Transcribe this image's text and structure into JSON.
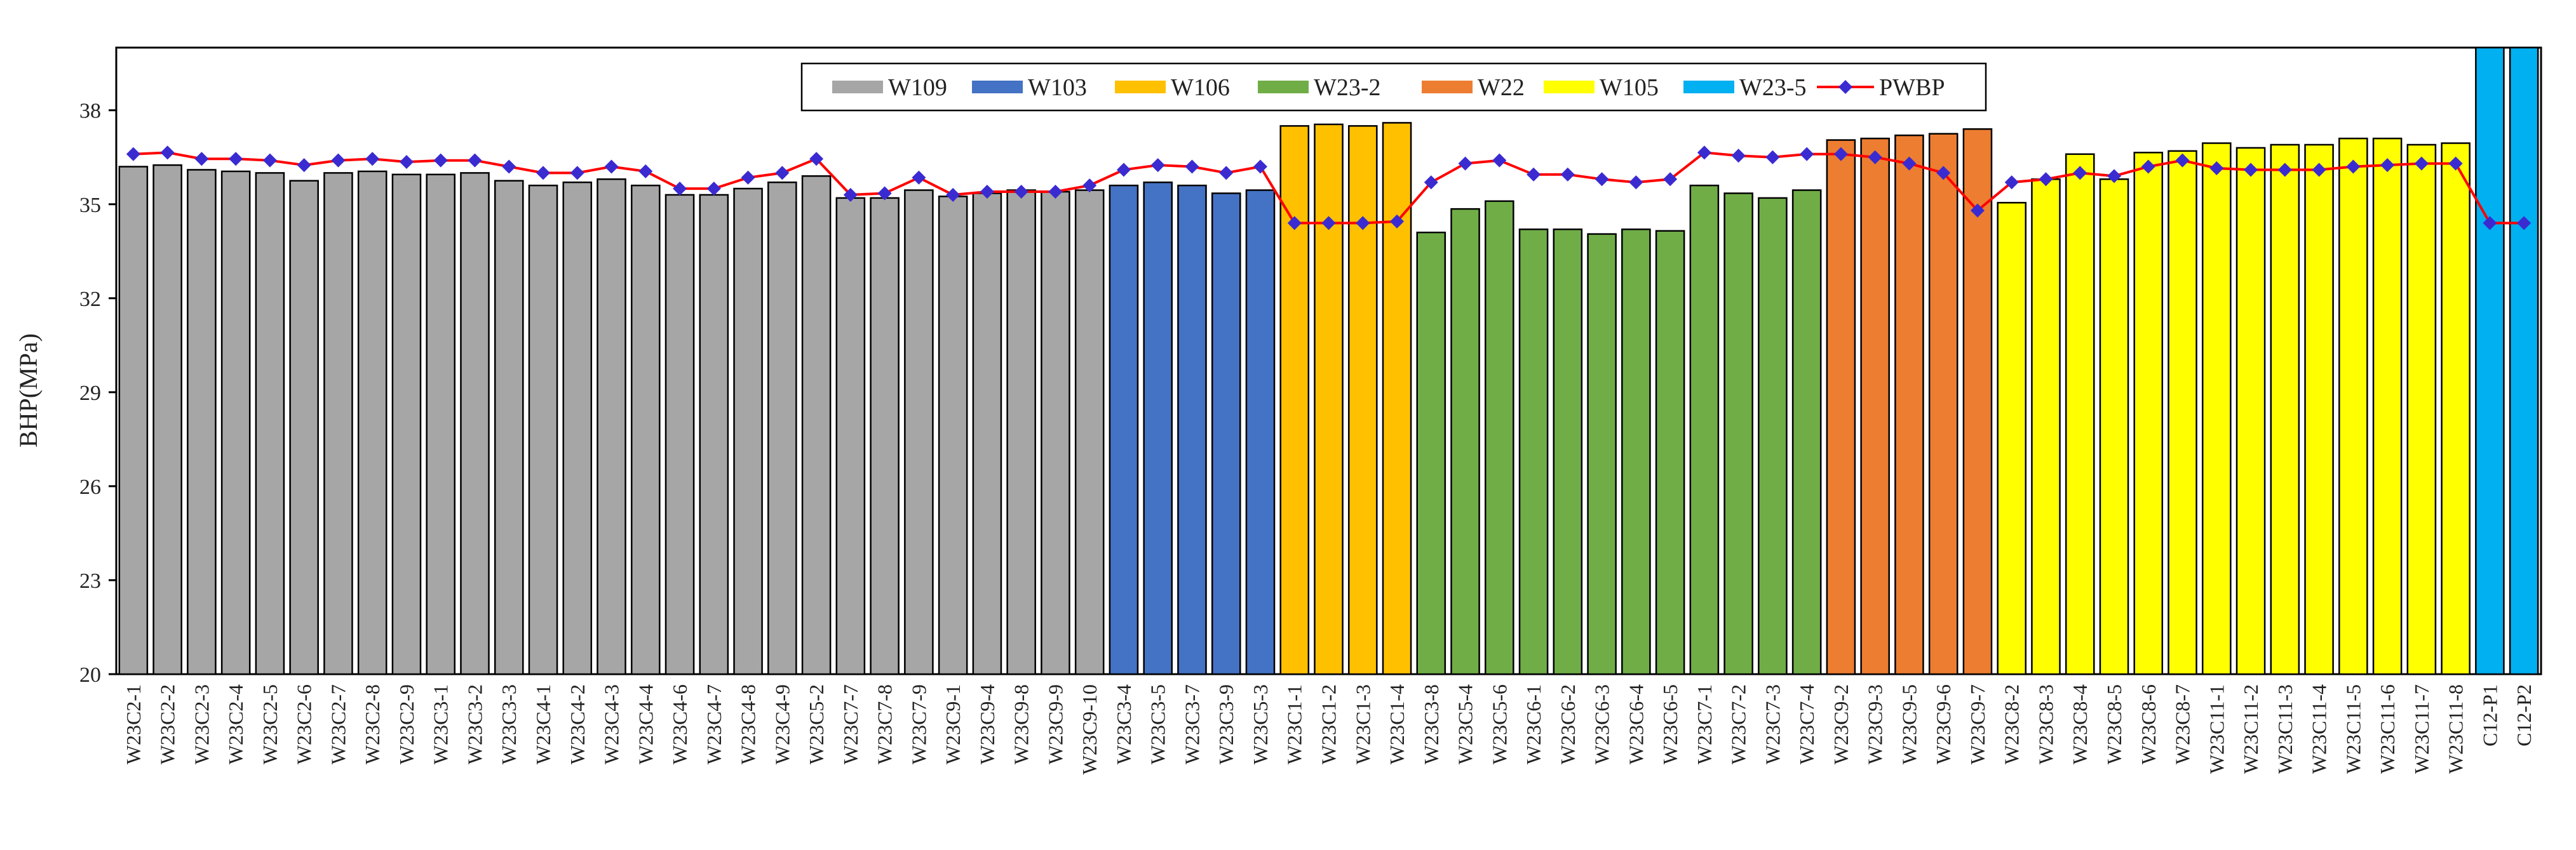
{
  "chart_data": {
    "type": "bar",
    "title": "",
    "xlabel": "",
    "ylabel": "BHP(MPa)",
    "ylim": [
      20,
      40
    ],
    "yticks": [
      20,
      23,
      26,
      29,
      32,
      35,
      38
    ],
    "grid": false,
    "legend_position": "top-center",
    "categories": [
      "W23C2-1",
      "W23C2-2",
      "W23C2-3",
      "W23C2-4",
      "W23C2-5",
      "W23C2-6",
      "W23C2-7",
      "W23C2-8",
      "W23C2-9",
      "W23C3-1",
      "W23C3-2",
      "W23C3-3",
      "W23C4-1",
      "W23C4-2",
      "W23C4-3",
      "W23C4-4",
      "W23C4-6",
      "W23C4-7",
      "W23C4-8",
      "W23C4-9",
      "W23C5-2",
      "W23C7-7",
      "W23C7-8",
      "W23C7-9",
      "W23C9-1",
      "W23C9-4",
      "W23C9-8",
      "W23C9-9",
      "W23C9-10",
      "W23C3-4",
      "W23C3-5",
      "W23C3-7",
      "W23C3-9",
      "W23C5-3",
      "W23C1-1",
      "W23C1-2",
      "W23C1-3",
      "W23C1-4",
      "W23C3-8",
      "W23C5-4",
      "W23C5-6",
      "W23C6-1",
      "W23C6-2",
      "W23C6-3",
      "W23C6-4",
      "W23C6-5",
      "W23C7-1",
      "W23C7-2",
      "W23C7-3",
      "W23C7-4",
      "W23C9-2",
      "W23C9-3",
      "W23C9-5",
      "W23C9-6",
      "W23C9-7",
      "W23C8-2",
      "W23C8-3",
      "W23C8-4",
      "W23C8-5",
      "W23C8-6",
      "W23C8-7",
      "W23C11-1",
      "W23C11-2",
      "W23C11-3",
      "W23C11-4",
      "W23C11-5",
      "W23C11-6",
      "W23C11-7",
      "W23C11-8",
      "C12-P1",
      "C12-P2"
    ],
    "groups": [
      {
        "name": "W109",
        "color": "#a6a6a6",
        "count": 29
      },
      {
        "name": "W103",
        "color": "#4472c4",
        "count": 5
      },
      {
        "name": "W106",
        "color": "#ffc000",
        "count": 4
      },
      {
        "name": "W23-2",
        "color": "#70ad47",
        "count": 12
      },
      {
        "name": "W22",
        "color": "#ed7d31",
        "count": 5
      },
      {
        "name": "W105",
        "color": "#ffff00",
        "count": 14
      },
      {
        "name": "W23-5",
        "color": "#00b0f0",
        "count": 2
      }
    ],
    "series": [
      {
        "name": "BHP",
        "type": "bar",
        "values": [
          36.2,
          36.25,
          36.1,
          36.05,
          36.0,
          35.75,
          36.0,
          36.05,
          35.95,
          35.95,
          36.0,
          35.75,
          35.6,
          35.7,
          35.8,
          35.6,
          35.3,
          35.3,
          35.5,
          35.7,
          35.9,
          35.2,
          35.2,
          35.45,
          35.25,
          35.35,
          35.45,
          35.4,
          35.45,
          35.6,
          35.7,
          35.6,
          35.35,
          35.45,
          37.5,
          37.55,
          37.5,
          37.6,
          34.1,
          34.85,
          35.1,
          34.2,
          34.2,
          34.05,
          34.2,
          34.15,
          35.6,
          35.35,
          35.2,
          35.45,
          37.05,
          37.1,
          37.2,
          37.25,
          37.4,
          35.05,
          35.8,
          36.6,
          35.8,
          36.65,
          36.7,
          36.95,
          36.8,
          36.9,
          36.9,
          37.1,
          37.1,
          36.9,
          36.95,
          40.0,
          40.0
        ]
      },
      {
        "name": "PWBP",
        "type": "line",
        "color": "#ff0000",
        "marker_color": "#3a2bd1",
        "values": [
          36.6,
          36.65,
          36.45,
          36.45,
          36.4,
          36.25,
          36.4,
          36.45,
          36.35,
          36.4,
          36.4,
          36.2,
          36.0,
          36.0,
          36.2,
          36.05,
          35.5,
          35.5,
          35.85,
          36.0,
          36.45,
          35.3,
          35.35,
          35.85,
          35.3,
          35.4,
          35.4,
          35.4,
          35.6,
          36.1,
          36.25,
          36.2,
          36.0,
          36.2,
          34.4,
          34.4,
          34.4,
          34.45,
          35.7,
          36.3,
          36.4,
          35.95,
          35.95,
          35.8,
          35.7,
          35.8,
          36.65,
          36.55,
          36.5,
          36.6,
          36.6,
          36.5,
          36.3,
          36.0,
          34.8,
          35.7,
          35.8,
          36.0,
          35.9,
          36.2,
          36.4,
          36.15,
          36.1,
          36.1,
          36.1,
          36.2,
          36.25,
          36.3,
          36.3,
          34.4,
          34.4
        ]
      }
    ],
    "legend": [
      "W109",
      "W103",
      "W106",
      "W23-2",
      "W22",
      "W105",
      "W23-5",
      "PWBP"
    ]
  }
}
